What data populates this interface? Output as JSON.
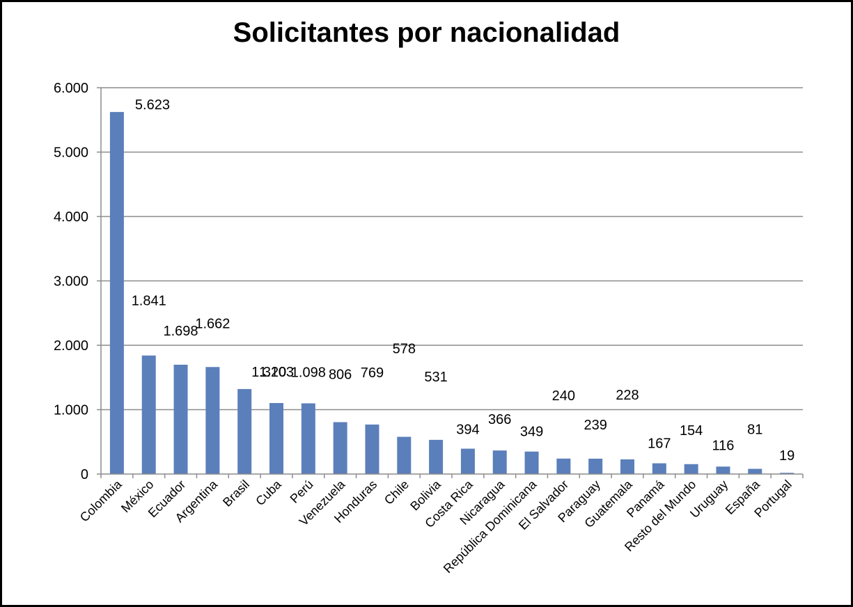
{
  "chart_data": {
    "type": "bar",
    "title": "Solicitantes por nacionalidad",
    "xlabel": "",
    "ylabel": "",
    "ylim": [
      0,
      6000
    ],
    "yticks": [
      0,
      1000,
      2000,
      3000,
      4000,
      5000,
      6000
    ],
    "ytick_labels": [
      "0",
      "1.000",
      "2.000",
      "3.000",
      "4.000",
      "5.000",
      "6.000"
    ],
    "grid": true,
    "legend": "none",
    "bar_color": "#5B7FBA",
    "categories": [
      "Colombia",
      "México",
      "Ecuador",
      "Argentina",
      "Brasil",
      "Cuba",
      "Perú",
      "Venezuela",
      "Honduras",
      "Chile",
      "Bolivia",
      "Costa Rica",
      "Nicaragua",
      "República Dominicana",
      "El Salvador",
      "Paraguay",
      "Guatemala",
      "Panamá",
      "Resto del Mundo",
      "Uruguay",
      "España",
      "Portugal"
    ],
    "values": [
      5623,
      1841,
      1698,
      1662,
      1320,
      1103,
      1098,
      806,
      769,
      578,
      531,
      394,
      366,
      349,
      240,
      239,
      228,
      167,
      154,
      116,
      81,
      19
    ],
    "value_labels": [
      "5.623",
      "1.841",
      "1.698",
      "1.662",
      "1.320",
      "1.103",
      "1.098",
      "806",
      "769",
      "578",
      "531",
      "394",
      "366",
      "349",
      "240",
      "239",
      "228",
      "167",
      "154",
      "116",
      "81",
      "19"
    ]
  }
}
